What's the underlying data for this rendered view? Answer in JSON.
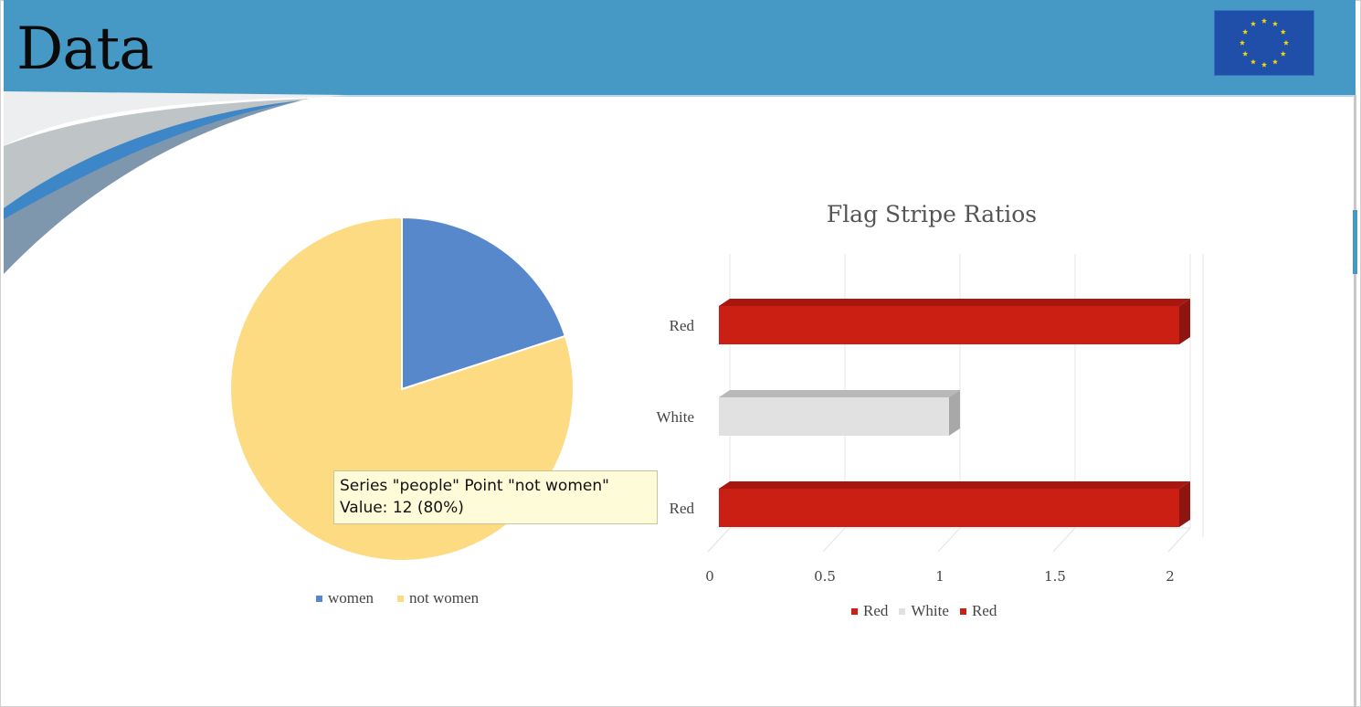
{
  "slide": {
    "title": "Data"
  },
  "header": {
    "background": "#4599c4",
    "flag_icon": "eu-flag-icon",
    "flag_background": "#1f4fa8",
    "star_color": "#f5d90a"
  },
  "chart_data": [
    {
      "type": "pie",
      "series_name": "people",
      "categories": [
        "women",
        "not women"
      ],
      "values": [
        3,
        12
      ],
      "colors": [
        "#5788cc",
        "#fddb83"
      ],
      "legend": {
        "position": "bottom",
        "entries": [
          "women",
          "not women"
        ]
      },
      "tooltip": {
        "line1": "Series \"people\" Point \"not women\"",
        "line2": "Value: 12 (80%)"
      }
    },
    {
      "type": "bar",
      "orientation": "horizontal",
      "title": "Flag Stripe Ratios",
      "categories": [
        "Red",
        "White",
        "Red"
      ],
      "values": [
        2,
        1,
        2
      ],
      "colors": [
        "#cc1f14",
        "#e1e1e1",
        "#cc1f14"
      ],
      "xlim": [
        0,
        2
      ],
      "ticks": [
        "0",
        "0.5",
        "1",
        "1.5",
        "2"
      ],
      "tick_values": [
        0,
        0.5,
        1,
        1.5,
        2
      ],
      "grid": true,
      "legend": {
        "position": "bottom",
        "entries": [
          "Red",
          "White",
          "Red"
        ]
      }
    }
  ]
}
